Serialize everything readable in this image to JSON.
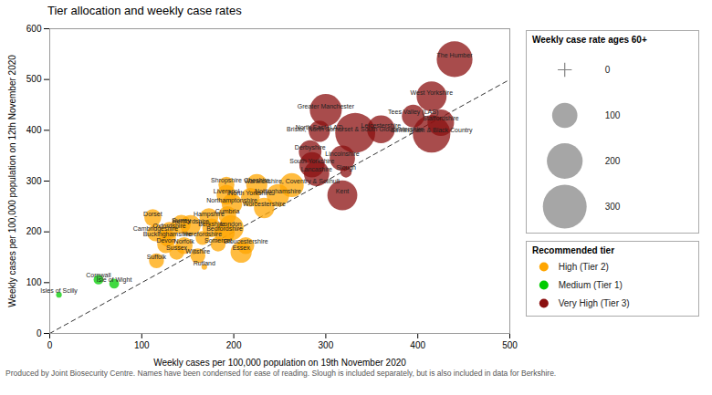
{
  "chart_data": {
    "type": "scatter",
    "title": "Tier allocation and weekly case rates",
    "xlabel": "Weekly cases per 100,000 population on 19th November 2020",
    "ylabel": "Weekly cases per 100,000 population on 12th November 2020",
    "footnote": "Produced by Joint Biosecurity Centre. Names have been condensed for ease of reading. Slough is included separately, but is also included in data for Berkshire.",
    "xlim": [
      0,
      500
    ],
    "ylim": [
      0,
      600
    ],
    "xticks": [
      0,
      100,
      200,
      300,
      400,
      500
    ],
    "yticks": [
      0,
      100,
      200,
      300,
      400,
      500,
      600
    ],
    "grid": false,
    "background_color": "#ffffff",
    "reference_line": {
      "x": [
        0,
        500
      ],
      "y": [
        0,
        500
      ],
      "color": "#000000",
      "line_style": "dashed"
    },
    "tiers": [
      {
        "tier": 2,
        "name": "High (Tier 2)",
        "color": "#FFA500"
      },
      {
        "tier": 1,
        "name": "Medium (Tier 1)",
        "color": "#00cc00"
      },
      {
        "tier": 3,
        "name": "Very High (Tier 3)",
        "color": "#8B1010"
      }
    ],
    "tier_legend_title": "Recommended tier",
    "size_legend": {
      "title": "Weekly case rate ages 60+",
      "values": [
        0,
        100,
        200,
        300
      ]
    },
    "points": [
      {
        "name": "The Humber",
        "x": 440,
        "y": 540,
        "tier": 3,
        "size": 200
      },
      {
        "name": "West Yorkshire",
        "x": 415,
        "y": 467,
        "tier": 3,
        "size": 140
      },
      {
        "name": "Tees Valley (LAS)",
        "x": 395,
        "y": 428,
        "tier": 3,
        "size": 80
      },
      {
        "name": "Staffordshire",
        "x": 425,
        "y": 415,
        "tier": 3,
        "size": 110
      },
      {
        "name": "Greater Manchester",
        "x": 300,
        "y": 440,
        "tier": 3,
        "size": 160
      },
      {
        "name": "Leicestershire",
        "x": 360,
        "y": 402,
        "tier": 3,
        "size": 120
      },
      {
        "name": "Birmingham & Black Country",
        "x": 415,
        "y": 393,
        "tier": 3,
        "size": 220
      },
      {
        "name": "North East (LA7)",
        "x": 293,
        "y": 398,
        "tier": 3,
        "size": 70
      },
      {
        "name": "Bristol, North Somerset & South Gloucestershire",
        "x": 332,
        "y": 395,
        "tier": 3,
        "size": 250
      },
      {
        "name": "Derbyshire",
        "x": 283,
        "y": 358,
        "tier": 3,
        "size": 80
      },
      {
        "name": "Lincolnshire",
        "x": 318,
        "y": 345,
        "tier": 3,
        "size": 100
      },
      {
        "name": "South Yorkshire",
        "x": 285,
        "y": 332,
        "tier": 3,
        "size": 100
      },
      {
        "name": "Lancashire",
        "x": 290,
        "y": 315,
        "tier": 3,
        "size": 100
      },
      {
        "name": "Slough",
        "x": 322,
        "y": 318,
        "tier": 3,
        "size": 20
      },
      {
        "name": "Kent",
        "x": 318,
        "y": 272,
        "tier": 3,
        "size": 140
      },
      {
        "name": "Shropshire",
        "x": 192,
        "y": 293,
        "tier": 2,
        "size": 40
      },
      {
        "name": "Cheshire",
        "x": 225,
        "y": 293,
        "tier": 2,
        "size": 70
      },
      {
        "name": "Warwickshire, Coventry & Solihull",
        "x": 263,
        "y": 292,
        "tier": 2,
        "size": 90
      },
      {
        "name": "Liverpool",
        "x": 192,
        "y": 273,
        "tier": 2,
        "size": 60
      },
      {
        "name": "North Yorkshire",
        "x": 218,
        "y": 268,
        "tier": 2,
        "size": 55
      },
      {
        "name": "Nottinghamshire",
        "x": 248,
        "y": 272,
        "tier": 2,
        "size": 80
      },
      {
        "name": "Northamptonshire",
        "x": 198,
        "y": 255,
        "tier": 2,
        "size": 65
      },
      {
        "name": "Worcestershire",
        "x": 233,
        "y": 247,
        "tier": 2,
        "size": 65
      },
      {
        "name": "Dorset",
        "x": 112,
        "y": 228,
        "tier": 2,
        "size": 45
      },
      {
        "name": "Surrey",
        "x": 143,
        "y": 215,
        "tier": 2,
        "size": 55
      },
      {
        "name": "Hampshire",
        "x": 173,
        "y": 228,
        "tier": 2,
        "size": 55
      },
      {
        "name": "Cumbria",
        "x": 193,
        "y": 233,
        "tier": 2,
        "size": 50
      },
      {
        "name": "Hertfordshire",
        "x": 153,
        "y": 213,
        "tier": 2,
        "size": 65
      },
      {
        "name": "Berkshire",
        "x": 176,
        "y": 208,
        "tier": 2,
        "size": 55
      },
      {
        "name": "London",
        "x": 197,
        "y": 208,
        "tier": 2,
        "size": 100
      },
      {
        "name": "Oxfordshire",
        "x": 130,
        "y": 203,
        "tier": 2,
        "size": 45
      },
      {
        "name": "Bedfordshire",
        "x": 190,
        "y": 198,
        "tier": 2,
        "size": 65
      },
      {
        "name": "Cambridgeshire",
        "x": 115,
        "y": 198,
        "tier": 2,
        "size": 45
      },
      {
        "name": "Herefordshire",
        "x": 166,
        "y": 188,
        "tier": 2,
        "size": 30
      },
      {
        "name": "Buckinghamshire",
        "x": 128,
        "y": 188,
        "tier": 2,
        "size": 45
      },
      {
        "name": "Devon",
        "x": 126,
        "y": 175,
        "tier": 2,
        "size": 45
      },
      {
        "name": "Norfolk",
        "x": 146,
        "y": 173,
        "tier": 2,
        "size": 45
      },
      {
        "name": "Somerset",
        "x": 183,
        "y": 176,
        "tier": 2,
        "size": 35
      },
      {
        "name": "Gloucestershire",
        "x": 213,
        "y": 173,
        "tier": 2,
        "size": 45
      },
      {
        "name": "Sussex",
        "x": 138,
        "y": 160,
        "tier": 2,
        "size": 35
      },
      {
        "name": "Wiltshire",
        "x": 161,
        "y": 153,
        "tier": 2,
        "size": 35
      },
      {
        "name": "Essex",
        "x": 208,
        "y": 160,
        "tier": 2,
        "size": 70
      },
      {
        "name": "Suffolk",
        "x": 116,
        "y": 143,
        "tier": 2,
        "size": 35
      },
      {
        "name": "Rutland",
        "x": 168,
        "y": 131,
        "tier": 2,
        "size": 5
      },
      {
        "name": "Cornwall",
        "x": 53,
        "y": 106,
        "tier": 1,
        "size": 15
      },
      {
        "name": "Isle of Wight",
        "x": 70,
        "y": 98,
        "tier": 1,
        "size": 15
      },
      {
        "name": "Isles of Scilly",
        "x": 10,
        "y": 76,
        "tier": 1,
        "size": 5
      }
    ]
  }
}
